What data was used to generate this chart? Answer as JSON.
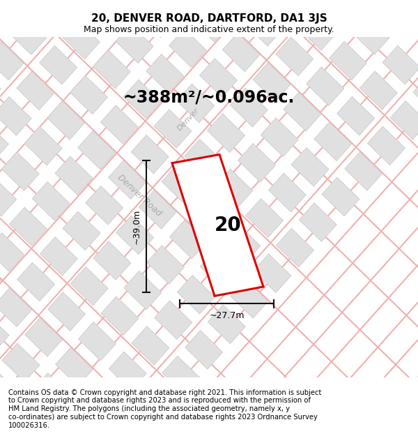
{
  "title": "20, DENVER ROAD, DARTFORD, DA1 3JS",
  "subtitle": "Map shows position and indicative extent of the property.",
  "area_label": "~388m²/~0.096ac.",
  "width_label": "~27.7m",
  "height_label": "~39.0m",
  "plot_number": "20",
  "street_label_h": "Denver Road",
  "street_label_v": "Denver",
  "footnote_lines": [
    "Contains OS data © Crown copyright and database right 2021. This information is subject",
    "to Crown copyright and database rights 2023 and is reproduced with the permission of",
    "HM Land Registry. The polygons (including the associated geometry, namely x, y",
    "co-ordinates) are subject to Crown copyright and database rights 2023 Ordnance Survey",
    "100026316."
  ],
  "bg_color": "#f8f8f8",
  "map_bg": "#ffffff",
  "property_color": "#dd0000",
  "road_outline_color": "#f0b0b0",
  "road_fill_color": "#ffffff",
  "building_color": "#e0e0e0",
  "building_edge": "#cccccc",
  "dim_line_color": "#111111",
  "title_fontsize": 11,
  "subtitle_fontsize": 9,
  "area_fontsize": 17,
  "plot_num_fontsize": 20,
  "footnote_fontsize": 7.2,
  "street_fontsize": 8,
  "dim_fontsize": 9
}
